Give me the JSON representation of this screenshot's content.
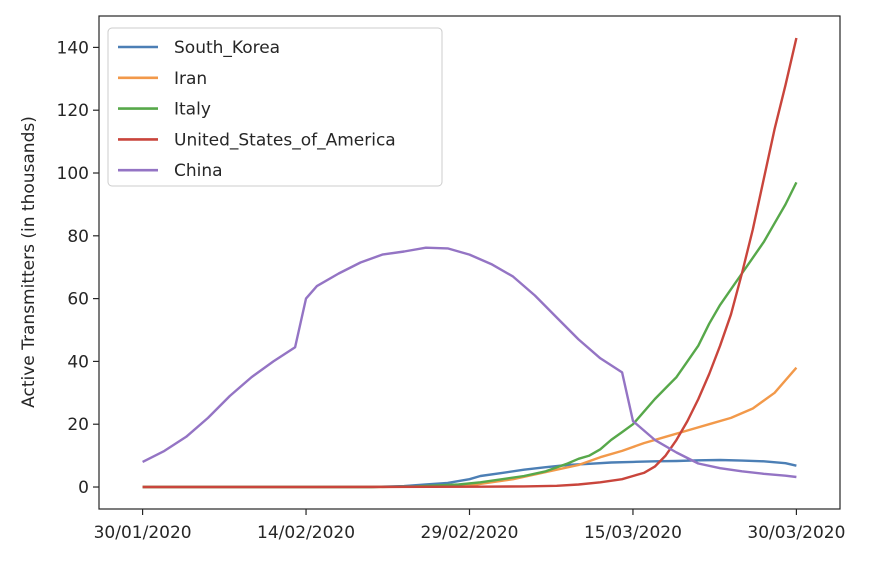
{
  "chart_data": {
    "type": "line",
    "title": "",
    "xlabel": "",
    "ylabel": "Active Transmitters (in thousands)",
    "xlim": [
      "2020-01-26",
      "2020-04-03"
    ],
    "ylim": [
      -7,
      150
    ],
    "x_ticks": [
      {
        "date": "2020-01-30",
        "label": "30/01/2020"
      },
      {
        "date": "2020-02-14",
        "label": "14/02/2020"
      },
      {
        "date": "2020-02-29",
        "label": "29/02/2020"
      },
      {
        "date": "2020-03-15",
        "label": "15/03/2020"
      },
      {
        "date": "2020-03-30",
        "label": "30/03/2020"
      }
    ],
    "y_ticks": [
      0,
      20,
      40,
      60,
      80,
      100,
      120,
      140
    ],
    "grid": false,
    "legend": "top-left",
    "series": [
      {
        "name": "South_Korea",
        "color": "#4c7fb5",
        "points": [
          [
            "2020-01-30",
            0
          ],
          [
            "2020-02-05",
            0
          ],
          [
            "2020-02-10",
            0
          ],
          [
            "2020-02-15",
            0
          ],
          [
            "2020-02-20",
            0
          ],
          [
            "2020-02-23",
            0.3
          ],
          [
            "2020-02-25",
            0.8
          ],
          [
            "2020-02-27",
            1.3
          ],
          [
            "2020-02-29",
            2.5
          ],
          [
            "2020-03-01",
            3.5
          ],
          [
            "2020-03-03",
            4.5
          ],
          [
            "2020-03-05",
            5.5
          ],
          [
            "2020-03-07",
            6.3
          ],
          [
            "2020-03-09",
            7
          ],
          [
            "2020-03-11",
            7.4
          ],
          [
            "2020-03-13",
            7.8
          ],
          [
            "2020-03-15",
            8
          ],
          [
            "2020-03-17",
            8.2
          ],
          [
            "2020-03-19",
            8.3
          ],
          [
            "2020-03-21",
            8.5
          ],
          [
            "2020-03-23",
            8.6
          ],
          [
            "2020-03-25",
            8.4
          ],
          [
            "2020-03-27",
            8.2
          ],
          [
            "2020-03-29",
            7.6
          ],
          [
            "2020-03-30",
            6.8
          ]
        ]
      },
      {
        "name": "Iran",
        "color": "#f2994a",
        "points": [
          [
            "2020-01-30",
            0
          ],
          [
            "2020-02-10",
            0
          ],
          [
            "2020-02-20",
            0
          ],
          [
            "2020-02-25",
            0.1
          ],
          [
            "2020-02-29",
            0.5
          ],
          [
            "2020-03-02",
            1.5
          ],
          [
            "2020-03-04",
            2.5
          ],
          [
            "2020-03-06",
            4
          ],
          [
            "2020-03-08",
            5.5
          ],
          [
            "2020-03-10",
            7
          ],
          [
            "2020-03-12",
            9.5
          ],
          [
            "2020-03-14",
            11.5
          ],
          [
            "2020-03-16",
            14
          ],
          [
            "2020-03-18",
            16
          ],
          [
            "2020-03-20",
            18
          ],
          [
            "2020-03-22",
            20
          ],
          [
            "2020-03-24",
            22
          ],
          [
            "2020-03-26",
            25
          ],
          [
            "2020-03-28",
            30
          ],
          [
            "2020-03-30",
            38
          ]
        ]
      },
      {
        "name": "Italy",
        "color": "#57a84a",
        "points": [
          [
            "2020-01-30",
            0
          ],
          [
            "2020-02-10",
            0
          ],
          [
            "2020-02-20",
            0
          ],
          [
            "2020-02-24",
            0.2
          ],
          [
            "2020-02-28",
            0.8
          ],
          [
            "2020-03-01",
            1.5
          ],
          [
            "2020-03-03",
            2.5
          ],
          [
            "2020-03-05",
            3.5
          ],
          [
            "2020-03-07",
            5
          ],
          [
            "2020-03-09",
            7.5
          ],
          [
            "2020-03-10",
            9
          ],
          [
            "2020-03-11",
            10
          ],
          [
            "2020-03-12",
            12
          ],
          [
            "2020-03-13",
            15
          ],
          [
            "2020-03-14",
            17.5
          ],
          [
            "2020-03-15",
            20
          ],
          [
            "2020-03-16",
            24
          ],
          [
            "2020-03-17",
            28
          ],
          [
            "2020-03-18",
            31.5
          ],
          [
            "2020-03-19",
            35
          ],
          [
            "2020-03-20",
            40
          ],
          [
            "2020-03-21",
            45
          ],
          [
            "2020-03-22",
            52
          ],
          [
            "2020-03-23",
            58
          ],
          [
            "2020-03-24",
            63
          ],
          [
            "2020-03-25",
            68
          ],
          [
            "2020-03-26",
            73
          ],
          [
            "2020-03-27",
            78
          ],
          [
            "2020-03-28",
            84
          ],
          [
            "2020-03-29",
            90
          ],
          [
            "2020-03-30",
            97
          ]
        ]
      },
      {
        "name": "United_States_of_America",
        "color": "#c9453c",
        "points": [
          [
            "2020-01-30",
            0
          ],
          [
            "2020-02-15",
            0
          ],
          [
            "2020-03-01",
            0.1
          ],
          [
            "2020-03-05",
            0.2
          ],
          [
            "2020-03-08",
            0.4
          ],
          [
            "2020-03-10",
            0.8
          ],
          [
            "2020-03-12",
            1.5
          ],
          [
            "2020-03-14",
            2.5
          ],
          [
            "2020-03-15",
            3.5
          ],
          [
            "2020-03-16",
            4.5
          ],
          [
            "2020-03-17",
            6.5
          ],
          [
            "2020-03-18",
            10
          ],
          [
            "2020-03-19",
            15
          ],
          [
            "2020-03-20",
            21
          ],
          [
            "2020-03-21",
            28
          ],
          [
            "2020-03-22",
            36
          ],
          [
            "2020-03-23",
            45
          ],
          [
            "2020-03-24",
            55
          ],
          [
            "2020-03-25",
            68
          ],
          [
            "2020-03-26",
            82
          ],
          [
            "2020-03-27",
            98
          ],
          [
            "2020-03-28",
            114
          ],
          [
            "2020-03-29",
            128
          ],
          [
            "2020-03-30",
            143
          ]
        ]
      },
      {
        "name": "China",
        "color": "#9474c4",
        "points": [
          [
            "2020-01-30",
            8
          ],
          [
            "2020-02-01",
            11.5
          ],
          [
            "2020-02-03",
            16
          ],
          [
            "2020-02-05",
            22
          ],
          [
            "2020-02-07",
            29
          ],
          [
            "2020-02-09",
            35
          ],
          [
            "2020-02-11",
            40
          ],
          [
            "2020-02-13",
            44.5
          ],
          [
            "2020-02-14",
            60
          ],
          [
            "2020-02-15",
            64
          ],
          [
            "2020-02-17",
            68
          ],
          [
            "2020-02-19",
            71.5
          ],
          [
            "2020-02-21",
            74
          ],
          [
            "2020-02-23",
            75
          ],
          [
            "2020-02-25",
            76.2
          ],
          [
            "2020-02-27",
            76
          ],
          [
            "2020-02-29",
            74
          ],
          [
            "2020-03-02",
            71
          ],
          [
            "2020-03-04",
            67
          ],
          [
            "2020-03-06",
            61
          ],
          [
            "2020-03-08",
            54
          ],
          [
            "2020-03-10",
            47
          ],
          [
            "2020-03-12",
            41
          ],
          [
            "2020-03-14",
            36.5
          ],
          [
            "2020-03-15",
            21
          ],
          [
            "2020-03-17",
            15
          ],
          [
            "2020-03-19",
            11
          ],
          [
            "2020-03-21",
            7.5
          ],
          [
            "2020-03-23",
            6
          ],
          [
            "2020-03-25",
            5
          ],
          [
            "2020-03-27",
            4.2
          ],
          [
            "2020-03-29",
            3.6
          ],
          [
            "2020-03-30",
            3.2
          ]
        ]
      }
    ]
  }
}
